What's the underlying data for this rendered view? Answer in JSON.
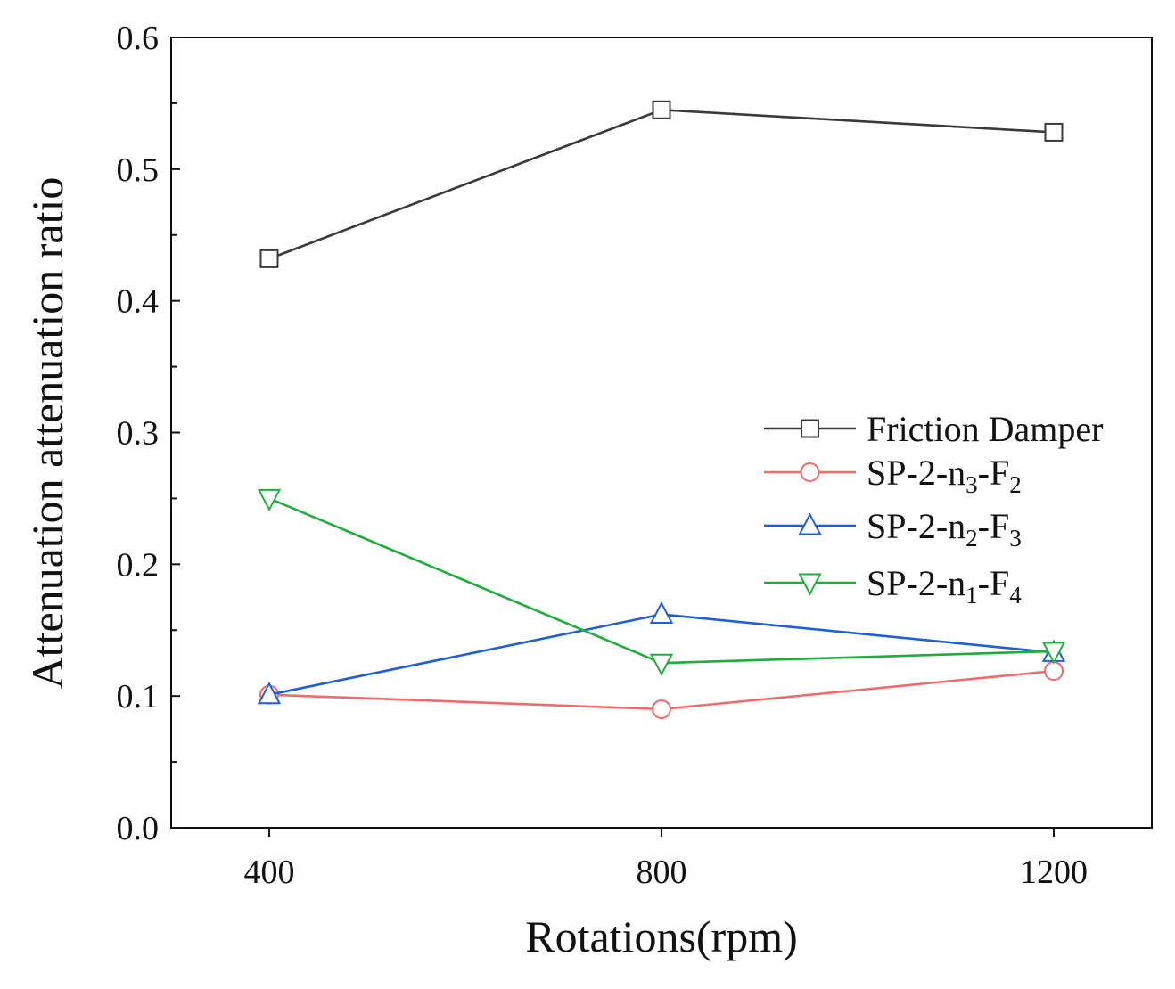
{
  "chart_data": {
    "type": "line",
    "title": "",
    "xlabel": "Rotations(rpm)",
    "ylabel": "Attenuation attenuation ratio",
    "x": [
      400,
      800,
      1200
    ],
    "xlim": [
      300,
      1300
    ],
    "ylim": [
      0,
      0.6
    ],
    "xticks": [
      "400",
      "800",
      "1200"
    ],
    "yticks": [
      "0.0",
      "0.1",
      "0.2",
      "0.3",
      "0.4",
      "0.5",
      "0.6"
    ],
    "grid": false,
    "legend_position": "middle-right",
    "series": [
      {
        "name": "Friction Damper",
        "base": "Friction Damper",
        "sub1": "",
        "mid": "",
        "sub2": "",
        "marker": "square",
        "color": "#3a3a3a",
        "values": [
          0.432,
          0.545,
          0.528
        ]
      },
      {
        "name": "SP-2-n3-F2",
        "base": "SP-2-n",
        "sub1": "3",
        "mid": "-F",
        "sub2": "2",
        "marker": "circle",
        "color": "#f26b6b",
        "values": [
          0.101,
          0.09,
          0.119
        ]
      },
      {
        "name": "SP-2-n2-F3",
        "base": "SP-2-n",
        "sub1": "2",
        "mid": "-F",
        "sub2": "3",
        "marker": "triangle-up",
        "color": "#1f5fd6",
        "values": [
          0.101,
          0.162,
          0.133
        ]
      },
      {
        "name": "SP-2-n1-F4",
        "base": "SP-2-n",
        "sub1": "1",
        "mid": "-F",
        "sub2": "4",
        "marker": "triangle-down",
        "color": "#1fae3c",
        "values": [
          0.25,
          0.125,
          0.134
        ]
      }
    ]
  }
}
